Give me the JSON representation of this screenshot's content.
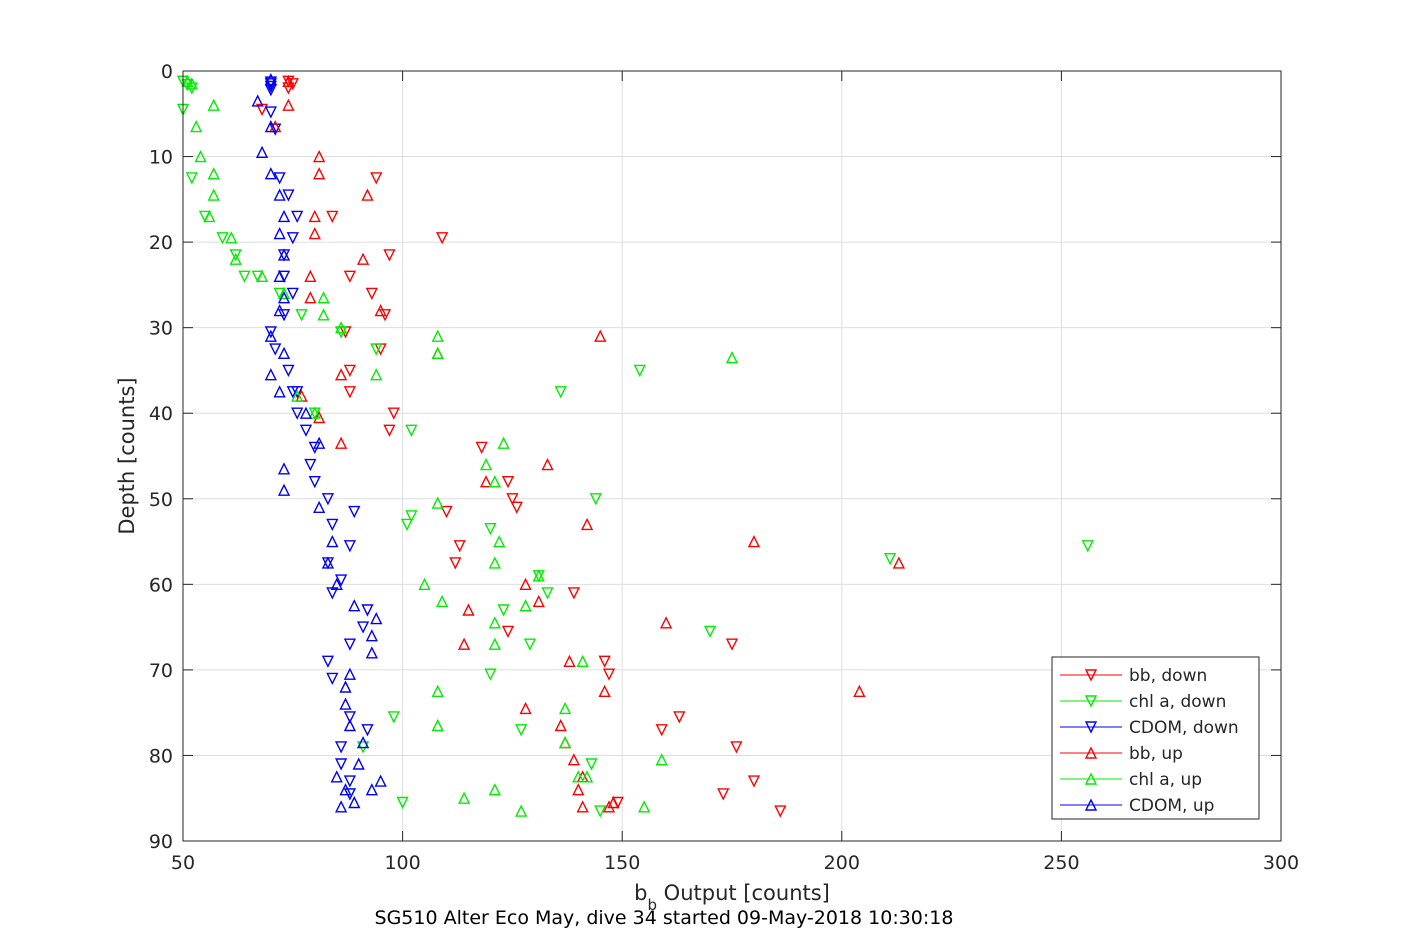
{
  "chart_data": {
    "type": "scatter",
    "title": "",
    "footer": "SG510 Alter Eco May, dive 34 started 09-May-2018 10:30:18",
    "xlabel_main": "b",
    "xlabel_sub": "b",
    "xlabel_rest": " Output [counts]",
    "ylabel": "Depth [counts]",
    "xlim": [
      50,
      300
    ],
    "ylim": [
      0,
      90
    ],
    "y_reversed": true,
    "grid": true,
    "legend_position": "bottom-right",
    "x_ticks": [
      50,
      100,
      150,
      200,
      250,
      300
    ],
    "y_ticks": [
      0,
      10,
      20,
      30,
      40,
      50,
      60,
      70,
      80,
      90
    ],
    "x_tick_labels": [
      "50",
      "100",
      "150",
      "200",
      "250",
      "300"
    ],
    "y_tick_labels": [
      "0",
      "10",
      "20",
      "30",
      "40",
      "50",
      "60",
      "70",
      "80",
      "90"
    ],
    "series": [
      {
        "name": "bb, down",
        "color": "#ff0000",
        "marker": "triangle-down",
        "x": [
          74,
          75,
          74,
          68,
          94,
          84,
          109,
          97,
          88,
          93,
          96,
          87,
          95,
          88,
          88,
          98,
          97,
          118,
          124,
          110,
          125,
          126,
          113,
          112,
          139,
          124,
          146,
          147,
          175,
          163,
          159,
          176,
          180,
          173,
          186,
          149
        ],
        "y": [
          1.2,
          1.5,
          2.0,
          4.5,
          12.5,
          17.0,
          19.5,
          21.5,
          24.0,
          26.0,
          28.5,
          30.5,
          32.5,
          35.0,
          37.5,
          40.0,
          42.0,
          44.0,
          48.0,
          51.5,
          50.0,
          51.0,
          55.5,
          57.5,
          61.0,
          65.5,
          69.0,
          70.5,
          67.0,
          75.5,
          77.0,
          79.0,
          83.0,
          84.5,
          86.5,
          85.5
        ]
      },
      {
        "name": "chl a, down",
        "color": "#00ee00",
        "marker": "triangle-down",
        "x": [
          50,
          51,
          52,
          50,
          52,
          55,
          59,
          62,
          64,
          67,
          72,
          77,
          86,
          94,
          154,
          136,
          80,
          102,
          101,
          144,
          102,
          120,
          211,
          256,
          131,
          133,
          123,
          129,
          170,
          120,
          127,
          98,
          91,
          143,
          88,
          100,
          145
        ],
        "y": [
          1.2,
          1.6,
          2.0,
          4.5,
          12.5,
          17.0,
          19.5,
          21.5,
          24.0,
          24.0,
          26.0,
          28.5,
          30.5,
          32.5,
          35.0,
          37.5,
          40.0,
          42.0,
          53.0,
          50.0,
          52.0,
          53.5,
          57.0,
          55.5,
          59.0,
          61.0,
          63.0,
          67.0,
          65.5,
          70.5,
          77.0,
          75.5,
          79.0,
          81.0,
          84.5,
          85.5,
          86.5
        ]
      },
      {
        "name": "CDOM, down",
        "color": "#0000ff",
        "marker": "triangle-down",
        "x": [
          70,
          70,
          70,
          70,
          70,
          71,
          72,
          74,
          76,
          75,
          73,
          73,
          75,
          73,
          70,
          71,
          74,
          75,
          76,
          76,
          78,
          80,
          79,
          80,
          83,
          89,
          84,
          88,
          83,
          86,
          84,
          92,
          91,
          88,
          83,
          84,
          88,
          92,
          86,
          86,
          88,
          88
        ],
        "y": [
          1.3,
          1.5,
          1.8,
          2.2,
          4.8,
          6.8,
          12.5,
          14.5,
          17.0,
          19.5,
          21.5,
          24.0,
          26.0,
          28.5,
          30.5,
          32.5,
          35.0,
          37.5,
          37.5,
          40.0,
          42.0,
          44.0,
          46.0,
          48.0,
          50.0,
          51.5,
          53.0,
          55.5,
          57.5,
          59.5,
          61.0,
          63.0,
          65.0,
          67.0,
          69.0,
          71.0,
          75.5,
          77.0,
          79.0,
          81.0,
          83.0,
          84.5
        ]
      },
      {
        "name": "bb, up",
        "color": "#ff0000",
        "marker": "triangle-up",
        "x": [
          74,
          74,
          71,
          81,
          81,
          92,
          80,
          80,
          91,
          79,
          79,
          95,
          145,
          108,
          86,
          77,
          81,
          86,
          133,
          119,
          142,
          180,
          213,
          128,
          131,
          115,
          160,
          114,
          138,
          146,
          204,
          128,
          136,
          137,
          139,
          141,
          140,
          141,
          148,
          147
        ],
        "y": [
          1.2,
          4.0,
          6.5,
          10.0,
          12.0,
          14.5,
          17.0,
          19.0,
          22.0,
          24.0,
          26.5,
          28.0,
          31.0,
          33.0,
          35.5,
          38.0,
          40.5,
          43.5,
          46.0,
          48.0,
          53.0,
          55.0,
          57.5,
          60.0,
          62.0,
          63.0,
          64.5,
          67.0,
          69.0,
          72.5,
          72.5,
          74.5,
          76.5,
          78.5,
          80.5,
          82.5,
          84.0,
          86.0,
          85.5,
          86.0
        ]
      },
      {
        "name": "chl a, up",
        "color": "#00ee00",
        "marker": "triangle-up",
        "x": [
          51,
          52,
          57,
          53,
          54,
          57,
          57,
          56,
          61,
          62,
          68,
          73,
          82,
          82,
          86,
          108,
          108,
          175,
          94,
          76,
          80,
          123,
          119,
          121,
          108,
          122,
          121,
          128,
          131,
          105,
          109,
          121,
          121,
          141,
          108,
          108,
          137,
          140,
          142,
          137,
          159,
          155,
          114,
          121,
          127
        ],
        "y": [
          1.2,
          1.5,
          4.0,
          6.5,
          10.0,
          12.0,
          14.5,
          17.0,
          19.5,
          22.0,
          24.0,
          26.0,
          26.5,
          28.5,
          30.0,
          31.0,
          33.0,
          33.5,
          35.5,
          38.0,
          40.0,
          43.5,
          46.0,
          48.0,
          50.5,
          55.0,
          57.5,
          62.5,
          59.0,
          60.0,
          62.0,
          64.5,
          67.0,
          69.0,
          72.5,
          76.5,
          74.5,
          82.5,
          82.5,
          78.5,
          80.5,
          86.0,
          85.0,
          84.0,
          86.5
        ]
      },
      {
        "name": "CDOM, up",
        "color": "#0000ff",
        "marker": "triangle-up",
        "x": [
          70,
          67,
          70,
          68,
          70,
          72,
          73,
          72,
          73,
          72,
          73,
          72,
          70,
          73,
          70,
          72,
          78,
          81,
          73,
          73,
          81,
          84,
          83,
          85,
          89,
          94,
          93,
          93,
          88,
          87,
          87,
          88,
          91,
          85,
          87,
          89,
          90,
          95,
          86,
          93
        ],
        "y": [
          1.0,
          3.5,
          6.5,
          9.5,
          12.0,
          14.5,
          17.0,
          19.0,
          21.5,
          24.0,
          26.5,
          28.0,
          31.0,
          33.0,
          35.5,
          37.5,
          40.0,
          43.5,
          46.5,
          49.0,
          51.0,
          55.0,
          57.5,
          60.0,
          62.5,
          64.0,
          66.0,
          68.0,
          70.5,
          72.0,
          74.0,
          76.5,
          78.5,
          82.5,
          84.0,
          85.5,
          81.0,
          83.0,
          86.0,
          84.0
        ]
      }
    ]
  }
}
